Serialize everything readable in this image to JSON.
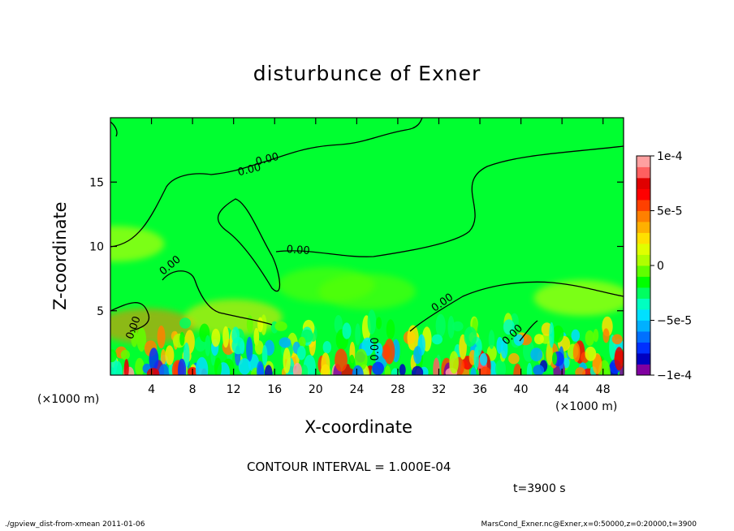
{
  "title": "disturbunce of Exner",
  "footer": {
    "left": "./gpview_dist-from-xmean  2011-01-06",
    "right": "MarsCond_Exner.nc@Exner,x=0:50000,z=0:20000,t=3900"
  },
  "annotations": {
    "contour_interval": "CONTOUR INTERVAL = 1.000E-04",
    "time": "t=3900 s",
    "x_unit_left": "(×1000 m)",
    "x_unit_right": "(×1000 m)"
  },
  "chart_data": {
    "type": "heatmap",
    "title": "disturbunce of Exner",
    "xlabel": "X-coordinate",
    "ylabel": "Z-coordinate",
    "x_unit": "×1000 m",
    "xlim": [
      0,
      50
    ],
    "ylim": [
      0,
      20
    ],
    "x_ticks": [
      4,
      8,
      12,
      16,
      20,
      24,
      28,
      32,
      36,
      40,
      44,
      48
    ],
    "y_ticks": [
      5,
      10,
      15
    ],
    "colorbar": {
      "range": [
        -0.0001,
        0.0001
      ],
      "ticks": [
        {
          "value": 0.0001,
          "label": "1e-4"
        },
        {
          "value": 5e-05,
          "label": "5e-5"
        },
        {
          "value": 0,
          "label": "0"
        },
        {
          "value": -5e-05,
          "label": "−5e-5"
        },
        {
          "value": -0.0001,
          "label": "−1e-4"
        }
      ],
      "colors": [
        "#8000a0",
        "#0000c0",
        "#0030ff",
        "#0070ff",
        "#00b0ff",
        "#00e0ff",
        "#00ffc0",
        "#00ff60",
        "#00ff00",
        "#60ff00",
        "#b0ff00",
        "#e0ff00",
        "#ffe000",
        "#ffb000",
        "#ff8000",
        "#ff4000",
        "#ff0000",
        "#e00000",
        "#ff6060",
        "#ffa0a0"
      ]
    },
    "contour_labels": [
      "0.00",
      "0.00",
      "0.00",
      "0.00",
      "0.00",
      "0.00",
      "0.00",
      "0.00"
    ],
    "base_color": "#00ff30",
    "upper_field": [
      {
        "x": 0.5,
        "z": 10.2,
        "value": 1e-05
      },
      {
        "x": 3.5,
        "z": 3.8,
        "value": 4e-05
      },
      {
        "x": 12,
        "z": 4.5,
        "value": 2e-05
      },
      {
        "x": 21,
        "z": 7,
        "value": -5e-06
      },
      {
        "x": 25,
        "z": 6.5,
        "value": -1e-05
      },
      {
        "x": 46,
        "z": 6,
        "value": 1e-05
      }
    ],
    "turbulent_layer_top_z": 4.2
  }
}
